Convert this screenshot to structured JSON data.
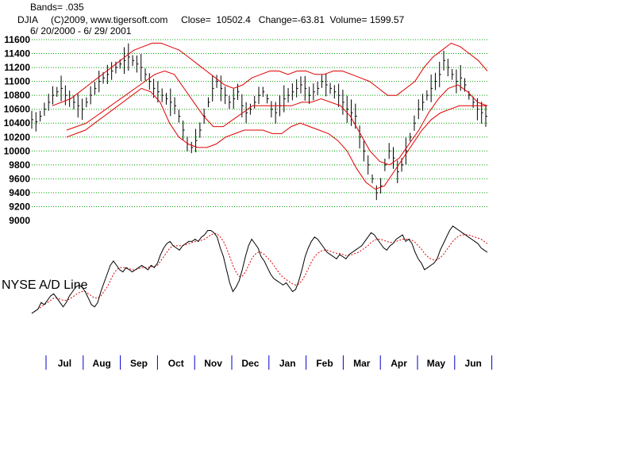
{
  "header": {
    "bands": "Bands= .035",
    "title": "DJIA     (C)2009, www.tigersoft.com     Close=  10502.4   Change=-63.81  Volume= 1599.57",
    "range": "6/ 20/2000 - 6/ 29/ 2001"
  },
  "colors": {
    "price_bars": "#000000",
    "bands": "#e00000",
    "grid": "#00a000",
    "ad_line": "#000000",
    "ad_ma": "#e00000",
    "month_ticks": "#0000cc"
  },
  "chart_data": [
    {
      "type": "line",
      "title": "DJIA",
      "ylim": [
        9000,
        11600
      ],
      "y_ticks": [
        "11600",
        "11400",
        "11200",
        "11000",
        "10800",
        "10600",
        "10400",
        "10200",
        "10000",
        "9800",
        "9600",
        "9400",
        "9200",
        "9000"
      ],
      "grid": true,
      "price_bars": {
        "description_ignored": "",
        "closes": [
          10450,
          10420,
          10500,
          10600,
          10700,
          10800,
          10850,
          10900,
          10800,
          10750,
          10700,
          10650,
          10600,
          10700,
          10800,
          10900,
          11000,
          11050,
          11100,
          11150,
          11200,
          11250,
          11300,
          11350,
          11300,
          11250,
          11200,
          11100,
          11000,
          10900,
          10850,
          10800,
          10750,
          10700,
          10650,
          10500,
          10300,
          10100,
          10050,
          10150,
          10300,
          10500,
          10700,
          10900,
          11000,
          10900,
          10800,
          10700,
          10750,
          10850,
          10650,
          10550,
          10600,
          10700,
          10800,
          10850,
          10750,
          10600,
          10550,
          10650,
          10750,
          10800,
          10850,
          10900,
          10950,
          10900,
          10800,
          10850,
          10900,
          11000,
          10950,
          10900,
          10850,
          10800,
          10700,
          10600,
          10550,
          10500,
          10200,
          10000,
          9800,
          9600,
          9400,
          9500,
          9800,
          10000,
          9900,
          9700,
          9800,
          10000,
          10200,
          10400,
          10600,
          10700,
          10800,
          10900,
          11000,
          11100,
          11300,
          11200,
          11100,
          11000,
          11050,
          10950,
          10800,
          10700,
          10600,
          10550,
          10500
        ]
      },
      "upper_band": [
        10650,
        10700,
        10750,
        10850,
        10950,
        11050,
        11150,
        11250,
        11350,
        11450,
        11500,
        11550,
        11550,
        11500,
        11450,
        11350,
        11250,
        11150,
        11050,
        10950,
        10900,
        10950,
        11050,
        11100,
        11150,
        11150,
        11100,
        11150,
        11150,
        11100,
        11100,
        11150,
        11150,
        11100,
        11050,
        11000,
        10900,
        10800,
        10800,
        10900,
        11000,
        11200,
        11350,
        11450,
        11550,
        11500,
        11400,
        11300,
        11150
      ],
      "lower_band": [
        10200,
        10250,
        10300,
        10400,
        10500,
        10600,
        10700,
        10800,
        10900,
        10850,
        10700,
        10400,
        10200,
        10100,
        10050,
        10050,
        10100,
        10200,
        10250,
        10300,
        10300,
        10300,
        10250,
        10250,
        10350,
        10400,
        10350,
        10300,
        10250,
        10150,
        10000,
        9750,
        9550,
        9450,
        9500,
        9700,
        9900,
        10100,
        10300,
        10450,
        10550,
        10600,
        10650,
        10650,
        10650,
        10650
      ],
      "ma": [
        10300,
        10350,
        10400,
        10500,
        10600,
        10700,
        10800,
        10900,
        11000,
        11100,
        11150,
        11100,
        10900,
        10700,
        10500,
        10350,
        10350,
        10450,
        10550,
        10650,
        10650,
        10650,
        10650,
        10650,
        10700,
        10700,
        10750,
        10700,
        10650,
        10500,
        10250,
        10000,
        9850,
        9800,
        9900,
        10100,
        10300,
        10550,
        10750,
        10900,
        10950,
        10850,
        10700,
        10650
      ]
    },
    {
      "type": "line",
      "title": "NYSE A/D Line",
      "series": [
        {
          "name": "NYSE A/D Line",
          "values": [
            20,
            22,
            24,
            30,
            28,
            32,
            36,
            38,
            34,
            30,
            26,
            30,
            36,
            40,
            44,
            46,
            44,
            40,
            34,
            28,
            26,
            30,
            40,
            48,
            56,
            64,
            68,
            64,
            60,
            58,
            62,
            60,
            58,
            60,
            62,
            64,
            62,
            60,
            64,
            62,
            66,
            74,
            80,
            84,
            86,
            82,
            80,
            78,
            82,
            84,
            86,
            86,
            88,
            86,
            90,
            92,
            96,
            96,
            94,
            90,
            80,
            72,
            60,
            48,
            40,
            44,
            50,
            60,
            72,
            82,
            88,
            84,
            80,
            72,
            68,
            62,
            56,
            52,
            50,
            48,
            46,
            48,
            44,
            40,
            42,
            50,
            60,
            72,
            80,
            86,
            90,
            88,
            84,
            80,
            76,
            74,
            72,
            70,
            74,
            72,
            70,
            74,
            76,
            78,
            80,
            82,
            86,
            90,
            94,
            92,
            88,
            84,
            80,
            78,
            82,
            84,
            88,
            90,
            92,
            86,
            88,
            84,
            76,
            70,
            66,
            60,
            62,
            64,
            66,
            70,
            78,
            84,
            90,
            96,
            100,
            98,
            96,
            94,
            92,
            90,
            88,
            86,
            84,
            80,
            78,
            76
          ]
        },
        {
          "name": "Moving Average",
          "values": [
            20,
            22,
            24,
            26,
            28,
            30,
            32,
            34,
            34,
            33,
            32,
            32,
            33,
            35,
            37,
            39,
            40,
            40,
            38,
            36,
            34,
            34,
            36,
            40,
            44,
            50,
            56,
            60,
            62,
            62,
            62,
            61,
            60,
            60,
            61,
            62,
            62,
            62,
            63,
            63,
            64,
            68,
            72,
            76,
            80,
            82,
            82,
            82,
            82,
            83,
            84,
            85,
            86,
            86,
            87,
            88,
            90,
            92,
            93,
            93,
            90,
            86,
            80,
            72,
            64,
            58,
            54,
            54,
            58,
            64,
            70,
            74,
            76,
            76,
            74,
            71,
            68,
            64,
            60,
            56,
            53,
            51,
            49,
            47,
            46,
            47,
            50,
            55,
            61,
            67,
            72,
            75,
            77,
            78,
            78,
            77,
            76,
            75,
            75,
            74,
            73,
            73,
            74,
            75,
            76,
            78,
            80,
            82,
            85,
            87,
            88,
            88,
            87,
            86,
            85,
            85,
            86,
            87,
            88,
            88,
            88,
            87,
            85,
            82,
            79,
            75,
            72,
            70,
            69,
            69,
            71,
            74,
            78,
            82,
            86,
            89,
            91,
            92,
            92,
            92,
            91,
            90,
            89,
            88,
            86,
            84
          ]
        }
      ],
      "annotation": "NYSE A/D Line"
    }
  ],
  "months": [
    "Jul",
    "Aug",
    "Sep",
    "Oct",
    "Nov",
    "Dec",
    "Jan",
    "Feb",
    "Mar",
    "Apr",
    "May",
    "Jun"
  ]
}
